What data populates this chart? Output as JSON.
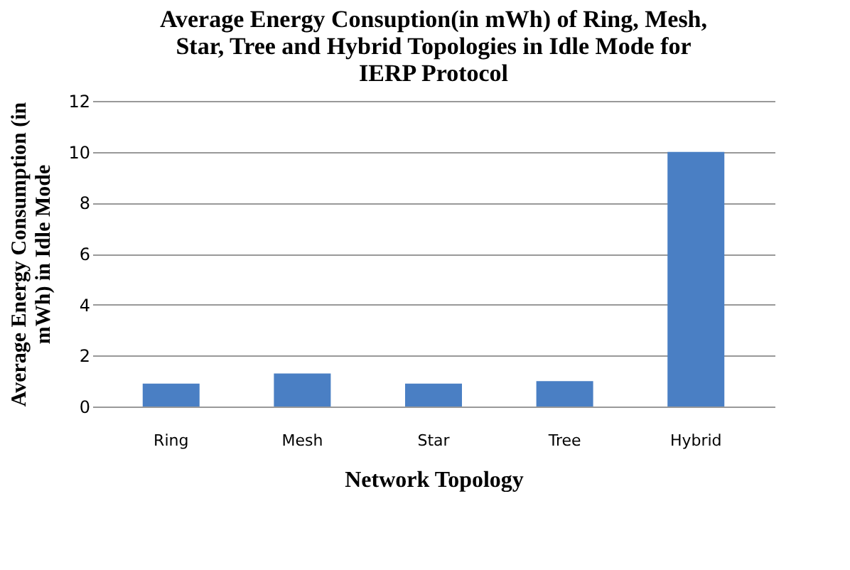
{
  "chart_data": {
    "type": "bar",
    "title": [
      "Average Energy Consuption(in mWh) of Ring, Mesh,",
      "Star, Tree and Hybrid Topologies in Idle Mode for",
      "IERP Protocol"
    ],
    "xlabel": "Network Topology",
    "ylabel": [
      "Average Energy Consumption (in",
      "mWh) in Idle Mode"
    ],
    "categories": [
      "Ring",
      "Mesh",
      "Star",
      "Tree",
      "Hybrid"
    ],
    "values": [
      0.9,
      1.3,
      0.9,
      1.0,
      10
    ],
    "color": "#4a7fc4",
    "ylim": [
      0,
      12
    ],
    "yticks": [
      0,
      2,
      4,
      6,
      8,
      10,
      12
    ],
    "grid": "y"
  }
}
